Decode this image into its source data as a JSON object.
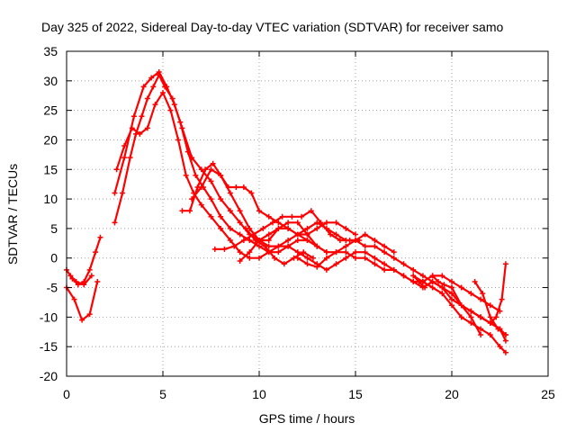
{
  "chart_data": {
    "type": "line",
    "title": "Day 325 of 2022, Sidereal Day-to-day VTEC variation (SDTVAR) for receiver samo",
    "xlabel": "GPS time / hours",
    "ylabel": "SDTVAR / TECUs",
    "xlim": [
      0,
      25
    ],
    "ylim": [
      -20,
      35
    ],
    "xticks": [
      0,
      5,
      10,
      15,
      20,
      25
    ],
    "yticks": [
      -20,
      -15,
      -10,
      -5,
      0,
      5,
      10,
      15,
      20,
      25,
      30,
      35
    ],
    "grid": true,
    "color": "#ff0000",
    "series": [
      {
        "name": "s1",
        "x": [
          0.0,
          0.3,
          0.6,
          0.9,
          1.2,
          1.5,
          1.75
        ],
        "y": [
          -2,
          -3.5,
          -4.5,
          -4,
          -2,
          1,
          3.5
        ]
      },
      {
        "name": "s2",
        "x": [
          0.0,
          0.4,
          0.8,
          1.2,
          1.6
        ],
        "y": [
          -5,
          -7,
          -10.5,
          -9.5,
          -4
        ]
      },
      {
        "name": "s3",
        "x": [
          0.2,
          0.5,
          0.9,
          1.3
        ],
        "y": [
          -3,
          -4,
          -4.5,
          -3
        ]
      },
      {
        "name": "s4",
        "x": [
          2.5,
          2.9,
          3.3,
          3.6,
          3.9,
          4.2,
          4.5,
          4.8,
          5.1,
          5.5,
          5.9,
          6.3,
          6.7,
          7.1,
          7.5,
          8.0,
          8.5,
          9.0,
          9.5,
          10.0,
          10.5,
          11.0,
          11.5,
          12.0,
          12.5,
          13.0,
          13.5,
          14.0,
          14.5,
          15.0,
          15.5,
          16.0,
          16.5,
          17.0,
          17.5,
          18.0,
          18.5,
          19.0,
          19.5,
          20.0,
          20.5,
          21.0,
          21.5,
          22.0,
          22.5,
          22.8
        ],
        "y": [
          6,
          11,
          17,
          21,
          24,
          27,
          29,
          31,
          29,
          27,
          23,
          18,
          14,
          12,
          10,
          7,
          5,
          4,
          3,
          2,
          1,
          1,
          2,
          3,
          3,
          2,
          1,
          1,
          1,
          0,
          0,
          -1,
          -2,
          -2,
          -3,
          -4,
          -4,
          -5,
          -6,
          -8,
          -10,
          -11,
          -12,
          -13,
          -15,
          -16
        ]
      },
      {
        "name": "s5",
        "x": [
          2.5,
          3.0,
          3.5,
          4.0,
          4.4,
          4.8,
          5.2,
          5.6,
          6.0,
          6.5,
          7.0,
          7.5,
          8.0,
          8.5,
          9.0,
          9.5,
          10.0,
          10.5,
          11.0,
          11.5,
          12.0,
          12.5,
          13.0,
          13.5,
          14.0,
          14.5,
          15.0,
          15.5,
          16.0,
          16.5,
          17.0,
          17.5,
          18.0,
          18.5,
          19.0,
          19.5,
          20.0,
          20.5,
          21.0,
          21.5,
          22.0,
          22.5,
          22.8
        ],
        "y": [
          11,
          17,
          24,
          29,
          30.5,
          31.5,
          29,
          26,
          22,
          17,
          15,
          13,
          10,
          8,
          6,
          4,
          3,
          2,
          2,
          3,
          4,
          5,
          6,
          5,
          4,
          3,
          3,
          2,
          2,
          1,
          0,
          -1,
          -2,
          -3,
          -4,
          -5,
          -6,
          -8,
          -9,
          -10,
          -11,
          -12,
          -13
        ]
      },
      {
        "name": "s6",
        "x": [
          2.6,
          3.0,
          3.4,
          3.8,
          4.2,
          4.6,
          5.0,
          5.4,
          5.8,
          6.2,
          6.6,
          7.0,
          7.5,
          8.0,
          8.5,
          9.0,
          9.5,
          10.0,
          10.5,
          11.0,
          11.5,
          12.0,
          12.5,
          13.0,
          13.5,
          14.0,
          14.5,
          15.0,
          15.5,
          16.0,
          16.5,
          17.0,
          17.5,
          18.0,
          18.5,
          19.0,
          19.5,
          20.0,
          20.5,
          21.0,
          21.5,
          22.0,
          22.5,
          22.8
        ],
        "y": [
          15,
          19,
          22,
          21,
          22,
          26,
          28,
          25,
          20,
          14,
          11,
          9,
          7,
          5,
          3,
          1,
          0,
          0,
          1,
          2,
          2,
          1,
          0,
          -1,
          -2,
          -1,
          0,
          1,
          1,
          0,
          -1,
          -2,
          -3,
          -4,
          -5,
          -4,
          -5,
          -7,
          -8,
          -9,
          -10,
          -11,
          -12,
          -14
        ]
      },
      {
        "name": "s7",
        "x": [
          6.0,
          6.4,
          6.8,
          7.2,
          7.6,
          8.0,
          8.4,
          8.8,
          9.2,
          9.6,
          10.0,
          10.5,
          11.0,
          11.5,
          12.0,
          12.5,
          13.0,
          13.5,
          14.0,
          14.5,
          15.0
        ],
        "y": [
          8,
          8,
          12,
          15,
          16,
          14,
          12,
          12,
          12,
          11,
          8,
          7,
          6,
          5,
          4,
          4,
          5,
          6,
          6,
          5,
          4
        ]
      },
      {
        "name": "s8",
        "x": [
          6.5,
          7.0,
          7.5,
          8.0,
          8.5,
          9.0,
          9.5,
          10.0,
          10.5,
          11.0,
          11.5,
          12.0,
          12.5,
          13.0,
          13.5
        ],
        "y": [
          10,
          12,
          15,
          14,
          11,
          8,
          5,
          3,
          3,
          5,
          6,
          6,
          4,
          2,
          1
        ]
      },
      {
        "name": "s9",
        "x": [
          7.7,
          8.2,
          8.7,
          9.2,
          9.7,
          10.2,
          10.7,
          11.2,
          11.7,
          12.2,
          12.7,
          13.2,
          13.7,
          14.2,
          14.7,
          15.2
        ],
        "y": [
          1.5,
          1.5,
          2,
          3,
          4,
          5,
          6,
          7,
          7,
          7,
          8,
          6,
          4,
          3,
          3,
          3
        ]
      },
      {
        "name": "s10",
        "x": [
          9.0,
          9.5,
          10.0,
          10.5,
          11.0,
          11.5,
          12.0,
          12.5,
          13.0
        ],
        "y": [
          -0.5,
          1,
          3,
          4,
          5,
          5,
          4,
          3,
          2
        ]
      },
      {
        "name": "s11",
        "x": [
          9.3,
          9.8,
          10.3,
          10.8,
          11.3,
          11.8,
          12.3,
          12.8
        ],
        "y": [
          5,
          3,
          2,
          0,
          -1,
          0,
          1,
          0
        ]
      },
      {
        "name": "s12",
        "x": [
          12.0,
          12.5,
          13.0,
          13.5,
          14.0,
          14.5,
          15.0,
          15.5,
          16.0,
          16.5,
          17.0
        ],
        "y": [
          0,
          -1,
          -1.5,
          0,
          1,
          2,
          3,
          4,
          3,
          2,
          1
        ]
      },
      {
        "name": "s13",
        "x": [
          18.0,
          18.5,
          19.0,
          19.5,
          20.0,
          20.5,
          21.0,
          21.5,
          22.0,
          22.5
        ],
        "y": [
          -3,
          -4,
          -3,
          -3,
          -4,
          -5,
          -6,
          -7,
          -8,
          -9
        ]
      },
      {
        "name": "s14",
        "x": [
          18.0,
          18.3,
          18.6
        ],
        "y": [
          -3,
          -4,
          -5
        ]
      },
      {
        "name": "s15",
        "x": [
          19.0,
          19.3,
          19.6,
          20.0
        ],
        "y": [
          -3,
          -4,
          -4.5,
          -5
        ]
      },
      {
        "name": "s16",
        "x": [
          20.0,
          20.5,
          21.0,
          21.5
        ],
        "y": [
          -5,
          -8,
          -10,
          -13
        ]
      },
      {
        "name": "s17",
        "x": [
          21.0,
          21.5,
          22.0,
          22.3,
          22.6,
          22.8
        ],
        "y": [
          -9,
          -10,
          -11,
          -10,
          -7,
          -1
        ]
      },
      {
        "name": "s18",
        "x": [
          21.2,
          21.6,
          22.0,
          22.4,
          22.8
        ],
        "y": [
          -4,
          -6,
          -10,
          -12,
          -13
        ]
      }
    ]
  }
}
